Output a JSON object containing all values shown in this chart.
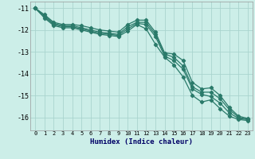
{
  "xlabel": "Humidex (Indice chaleur)",
  "bg_color": "#cceee8",
  "grid_color": "#aad4ce",
  "line_color": "#2a7a6a",
  "xlim": [
    -0.5,
    23.5
  ],
  "ylim": [
    -16.6,
    -10.7
  ],
  "yticks": [
    -11,
    -12,
    -13,
    -14,
    -15,
    -16
  ],
  "xticks": [
    0,
    1,
    2,
    3,
    4,
    5,
    6,
    7,
    8,
    9,
    10,
    11,
    12,
    13,
    14,
    15,
    16,
    17,
    18,
    19,
    20,
    21,
    22,
    23
  ],
  "series": [
    [
      -11.0,
      -11.3,
      -11.65,
      -11.75,
      -11.75,
      -11.8,
      -11.9,
      -12.0,
      -12.05,
      -12.1,
      -11.75,
      -11.55,
      -11.55,
      -12.1,
      -13.05,
      -13.1,
      -13.4,
      -14.4,
      -14.7,
      -14.65,
      -15.0,
      -15.55,
      -15.95,
      -16.05
    ],
    [
      -11.0,
      -11.35,
      -11.7,
      -11.8,
      -11.8,
      -11.9,
      -12.0,
      -12.1,
      -12.15,
      -12.2,
      -11.85,
      -11.65,
      -11.65,
      -12.2,
      -13.1,
      -13.25,
      -13.65,
      -14.6,
      -14.85,
      -14.85,
      -15.15,
      -15.65,
      -16.0,
      -16.1
    ],
    [
      -11.0,
      -11.4,
      -11.75,
      -11.85,
      -11.85,
      -11.95,
      -12.05,
      -12.15,
      -12.2,
      -12.25,
      -11.95,
      -11.7,
      -11.75,
      -12.3,
      -13.2,
      -13.4,
      -13.8,
      -14.7,
      -14.95,
      -15.05,
      -15.35,
      -15.8,
      -16.05,
      -16.1
    ],
    [
      -11.0,
      -11.45,
      -11.8,
      -11.9,
      -11.9,
      -12.0,
      -12.1,
      -12.2,
      -12.25,
      -12.3,
      -12.05,
      -11.75,
      -11.95,
      -12.65,
      -13.25,
      -13.6,
      -14.15,
      -15.0,
      -15.3,
      -15.2,
      -15.6,
      -15.95,
      -16.1,
      -16.15
    ]
  ]
}
